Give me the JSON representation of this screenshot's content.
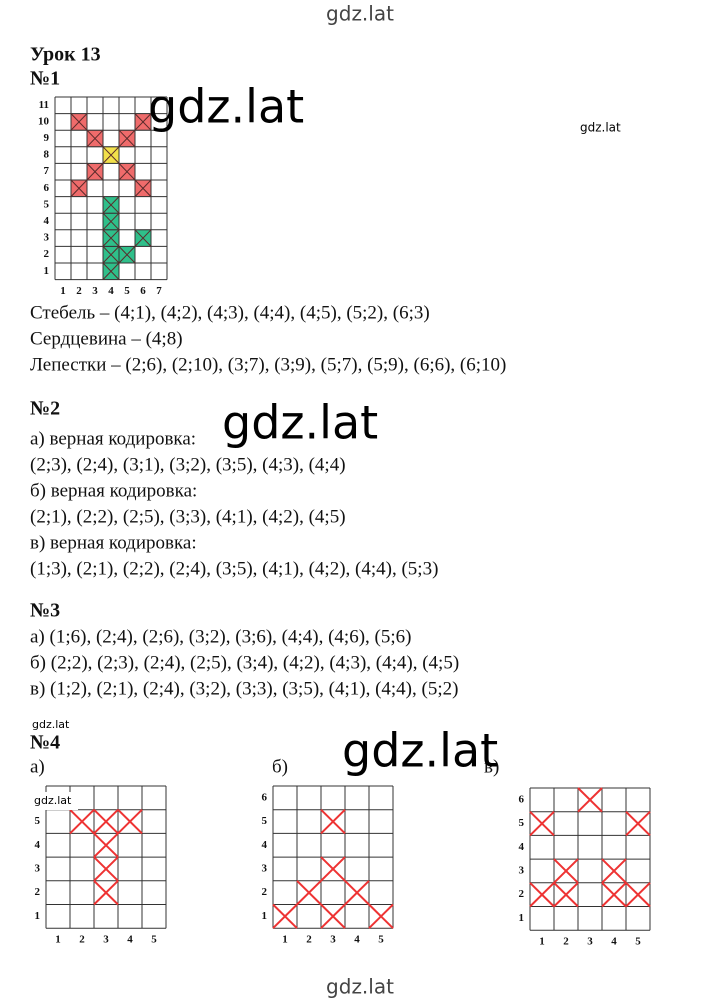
{
  "header": {
    "watermark": "gdz.lat",
    "lesson": "Урок 13"
  },
  "watermarks": [
    "gdz.lat",
    "gdz.lat",
    "gdz.lat",
    "gdz.lat",
    "gdz.lat",
    "gdz.lat"
  ],
  "task1": {
    "number": "№1",
    "grid": {
      "x_labels": [
        "1",
        "2",
        "3",
        "4",
        "5",
        "6",
        "7"
      ],
      "y_labels": [
        "1",
        "2",
        "3",
        "4",
        "5",
        "6",
        "7",
        "8",
        "9",
        "10",
        "11"
      ]
    },
    "lines": [
      "Стебель – (4;1), (4;2), (4;3), (4;4), (4;5), (5;2), (6;3)",
      "Сердцевина – (4;8)",
      "Лепестки – (2;6), (2;10), (3;7), (3;9), (5;7), (5;9), (6;6), (6;10)"
    ]
  },
  "task2": {
    "number": "№2",
    "lines": [
      "а) верная кодировка:",
      "(2;3), (2;4), (3;1), (3;2), (3;5), (4;3), (4;4)",
      "б) верная кодировка:",
      "(2;1), (2;2), (2;5), (3;3), (4;1), (4;2), (4;5)",
      "в) верная кодировка:",
      "(1;3), (2;1), (2;2), (2;4), (3;5), (4;1), (4;2), (4;4), (5;3)"
    ]
  },
  "task3": {
    "number": "№3",
    "lines": [
      "а) (1;6), (2;4), (2;6), (3;2), (3;6), (4;4), (4;6), (5;6)",
      "б) (2;2), (2;3), (2;4), (2;5), (3;4), (4;2), (4;3), (4;4), (4;5)",
      "в) (1;2), (2;1), (2;4), (3;2), (3;3), (3;5), (4;1), (4;4), (5;2)"
    ]
  },
  "task4": {
    "number": "№4",
    "grids": [
      {
        "label": "а)",
        "x_labels": [
          "1",
          "2",
          "3",
          "4",
          "5"
        ],
        "y_labels": [
          "1",
          "2",
          "3",
          "4",
          "5"
        ]
      },
      {
        "label": "б)",
        "x_labels": [
          "1",
          "2",
          "3",
          "4",
          "5"
        ],
        "y_labels": [
          "1",
          "2",
          "3",
          "4",
          "5",
          "6"
        ]
      },
      {
        "label": "в)",
        "x_labels": [
          "1",
          "2",
          "3",
          "4",
          "5"
        ],
        "y_labels": [
          "1",
          "2",
          "3",
          "4",
          "5",
          "6"
        ]
      }
    ]
  },
  "footer": "gdz.lat"
}
